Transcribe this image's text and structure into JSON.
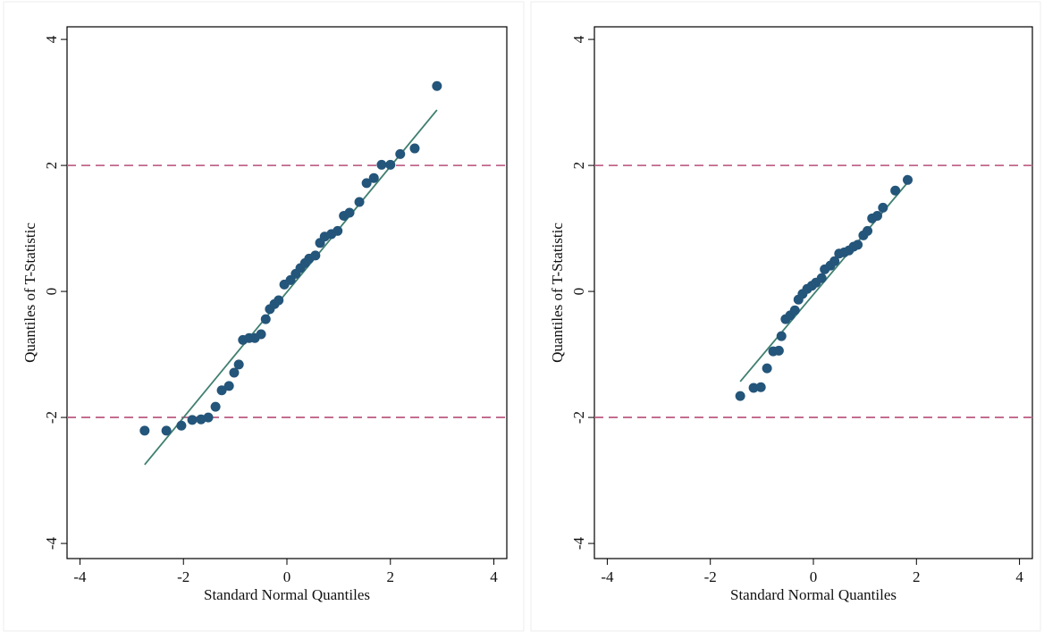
{
  "chart_data": [
    {
      "type": "scatter",
      "xlabel": "Standard Normal Quantiles",
      "ylabel": "Quantiles of T-Statistic",
      "x": [
        -2.75,
        -2.33,
        -2.04,
        -1.83,
        -1.66,
        -1.52,
        -1.38,
        -1.26,
        -1.12,
        -1.02,
        -0.93,
        -0.85,
        -0.73,
        -0.62,
        -0.5,
        -0.41,
        -0.33,
        -0.24,
        -0.16,
        -0.05,
        0.07,
        0.17,
        0.26,
        0.35,
        0.43,
        0.55,
        0.64,
        0.73,
        0.86,
        0.98,
        1.1,
        1.21,
        1.4,
        1.54,
        1.68,
        1.83,
        2.0,
        2.19,
        2.47,
        2.9
      ],
      "values": [
        -2.21,
        -2.21,
        -2.13,
        -2.04,
        -2.03,
        -2.0,
        -1.83,
        -1.57,
        -1.5,
        -1.29,
        -1.16,
        -0.77,
        -0.74,
        -0.74,
        -0.68,
        -0.44,
        -0.28,
        -0.2,
        -0.14,
        0.11,
        0.18,
        0.28,
        0.37,
        0.45,
        0.52,
        0.57,
        0.77,
        0.87,
        0.91,
        0.96,
        1.2,
        1.25,
        1.42,
        1.72,
        1.8,
        2.01,
        2.01,
        2.18,
        2.27,
        3.26
      ],
      "color": "#24557a",
      "fit_line": {
        "x": [
          -2.75,
          2.9
        ],
        "values": [
          -2.75,
          2.88
        ],
        "color": "#3f7f6f"
      },
      "hlines": [
        2,
        -2
      ],
      "hline_color": "#c0668a",
      "xlim": [
        -4.25,
        4.25
      ],
      "ylim": [
        -4.24,
        4.2
      ],
      "xticks": [
        -4,
        -2,
        0,
        2,
        4
      ],
      "yticks": [
        -4,
        -2,
        0,
        2,
        4
      ]
    },
    {
      "type": "scatter",
      "xlabel": "Standard Normal Quantiles",
      "ylabel": "Quantiles of T-Statistic",
      "x": [
        -1.42,
        -1.16,
        -1.02,
        -0.9,
        -0.78,
        -0.67,
        -0.62,
        -0.54,
        -0.45,
        -0.36,
        -0.29,
        -0.21,
        -0.12,
        -0.03,
        0.05,
        0.16,
        0.22,
        0.33,
        0.41,
        0.5,
        0.6,
        0.69,
        0.78,
        0.86,
        0.97,
        1.05,
        1.14,
        1.24,
        1.35,
        1.59,
        1.83
      ],
      "values": [
        -1.66,
        -1.53,
        -1.52,
        -1.22,
        -0.95,
        -0.94,
        -0.71,
        -0.44,
        -0.38,
        -0.3,
        -0.13,
        -0.04,
        0.04,
        0.09,
        0.14,
        0.21,
        0.35,
        0.41,
        0.48,
        0.6,
        0.62,
        0.65,
        0.71,
        0.74,
        0.89,
        0.96,
        1.16,
        1.2,
        1.33,
        1.6,
        1.77
      ],
      "color": "#24557a",
      "fit_line": {
        "x": [
          -1.42,
          1.83
        ],
        "values": [
          -1.43,
          1.73
        ],
        "color": "#3f7f6f"
      },
      "hlines": [
        2,
        -2
      ],
      "hline_color": "#c0668a",
      "xlim": [
        -4.25,
        4.25
      ],
      "ylim": [
        -4.24,
        4.2
      ],
      "xticks": [
        -4,
        -2,
        0,
        2,
        4
      ],
      "yticks": [
        -4,
        -2,
        0,
        2,
        4
      ]
    }
  ]
}
